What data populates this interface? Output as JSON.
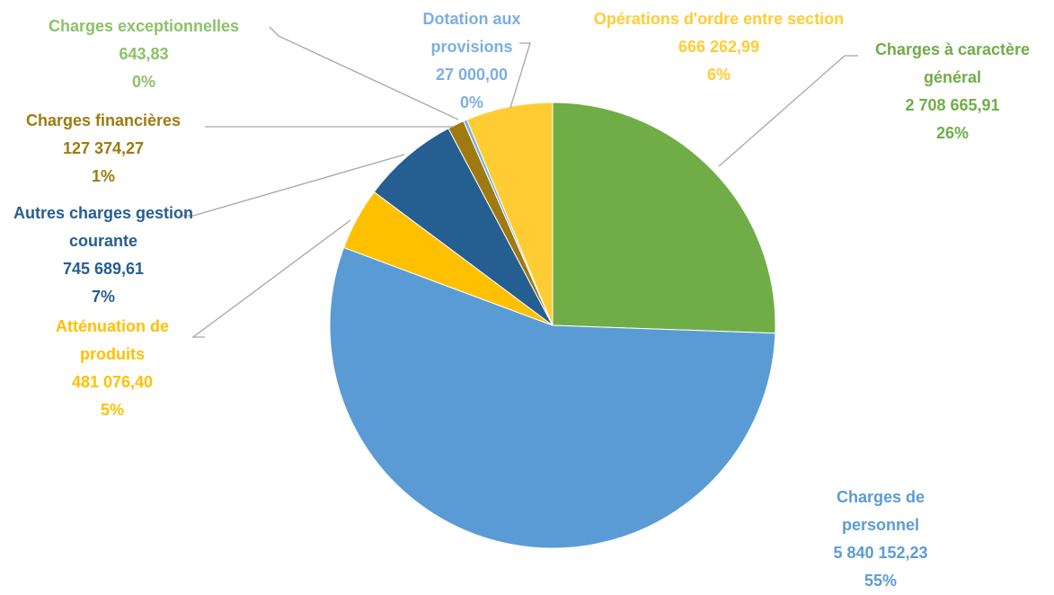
{
  "chart_data": {
    "type": "pie",
    "categories": [
      "Charges à caractère général",
      "Charges de personnel",
      "Atténuation de produits",
      "Autres charges gestion courante",
      "Charges financières",
      "Charges exceptionnelles",
      "Dotation aux provisions",
      "Opérations d'ordre entre section"
    ],
    "values": [
      2708665.91,
      5840152.23,
      481076.4,
      745689.61,
      127374.27,
      643.83,
      27000.0,
      666262.99
    ],
    "value_labels": [
      "2 708 665,91",
      "5 840 152,23",
      "481 076,40",
      "745 689,61",
      "127 374,27",
      "643,83",
      "27 000,00",
      "666 262,99"
    ],
    "percent_labels": [
      "26%",
      "55%",
      "5%",
      "7%",
      "1%",
      "0%",
      "0%",
      "6%"
    ],
    "colors": [
      "#70ad47",
      "#5b9bd5",
      "#ffc000",
      "#255e91",
      "#9e7a10",
      "#8cc168",
      "#7cafe0",
      "#ffcd33"
    ]
  }
}
